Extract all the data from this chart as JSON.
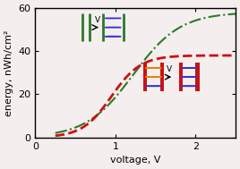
{
  "xlabel": "voltage, V",
  "ylabel": "energy, nWh/cm²",
  "xlim": [
    0,
    2.5
  ],
  "ylim": [
    0,
    60
  ],
  "yticks": [
    0,
    20,
    40,
    60
  ],
  "xticks": [
    0,
    1,
    2
  ],
  "bg_color": "#f5eeee",
  "green_color": "#2a7a2a",
  "red_color": "#cc1111",
  "blue_color": "#3333cc",
  "orange_color": "#dd8800",
  "green_lw": 1.5,
  "red_lw": 2.0,
  "figsize": [
    2.68,
    1.89
  ],
  "dpi": 100,
  "green_x0": 1.22,
  "green_k": 3.4,
  "green_max": 58.0,
  "red_x0": 0.95,
  "red_k": 5.5,
  "red_max": 38.0
}
